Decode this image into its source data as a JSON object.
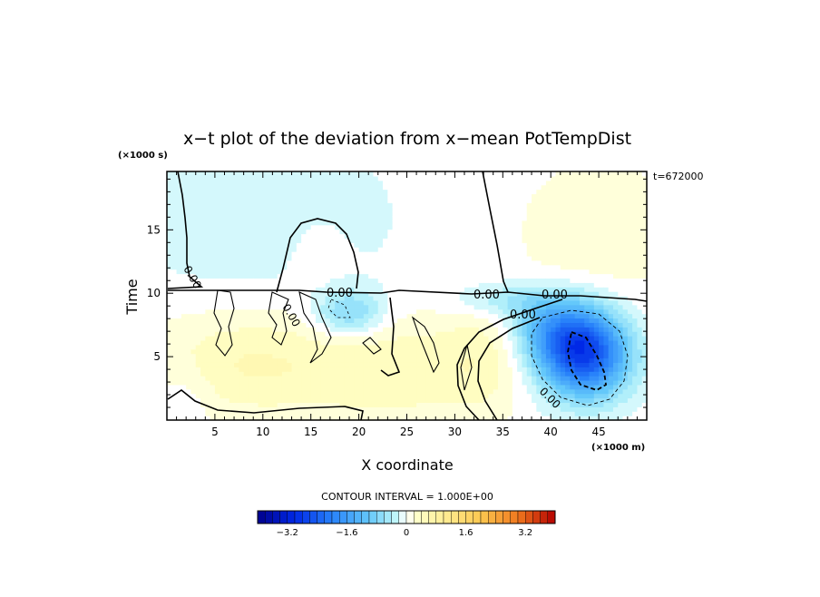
{
  "chart_data": {
    "type": "heatmap",
    "title": "x−t plot of the deviation from x−mean PotTempDist",
    "xlabel": "X coordinate",
    "ylabel": "Time",
    "x_unit": "(×1000 m)",
    "y_unit": "(×1000 s)",
    "time_stamp": "t=672000",
    "xlim": [
      0,
      50
    ],
    "ylim": [
      0,
      19.6
    ],
    "x_ticks": [
      5,
      10,
      15,
      20,
      25,
      30,
      35,
      40,
      45
    ],
    "y_ticks": [
      5,
      10,
      15
    ],
    "contour_interval_label": "CONTOUR INTERVAL = 1.000E+00",
    "contour_labels": [
      "0.00",
      "0.00",
      "0.00",
      "0.00",
      "0.00",
      "0.00",
      "0.00"
    ],
    "colorbar": {
      "range": [
        -4,
        4
      ],
      "step": 0.2,
      "tick_values": [
        -3.2,
        -1.6,
        0,
        1.6,
        3.2
      ],
      "tick_labels": [
        "−3.2",
        "−1.6",
        "0",
        "1.6",
        "3.2"
      ]
    },
    "anomalies": [
      {
        "x": 43.5,
        "t": 5.2,
        "value": -2.6,
        "sx": 3.2,
        "st": 2.3
      },
      {
        "x": 40.5,
        "t": 7.2,
        "value": -1.0,
        "sx": 3.0,
        "st": 1.8
      },
      {
        "x": 19.0,
        "t": 8.5,
        "value": -0.8,
        "sx": 2.5,
        "st": 1.3
      },
      {
        "x": 36.0,
        "t": 9.5,
        "value": -0.5,
        "sx": 4.0,
        "st": 1.0
      },
      {
        "x": 8.0,
        "t": 4.5,
        "value": 0.5,
        "sx": 7.0,
        "st": 3.0
      },
      {
        "x": 24.0,
        "t": 4.0,
        "value": 0.45,
        "sx": 7.0,
        "st": 3.0
      },
      {
        "x": 33.0,
        "t": 5.0,
        "value": 0.3,
        "sx": 3.0,
        "st": 3.0
      },
      {
        "x": 45.0,
        "t": 15.0,
        "value": 0.25,
        "sx": 6.0,
        "st": 4.0
      },
      {
        "x": 15.5,
        "t": 13.5,
        "value": 0.15,
        "sx": 2.5,
        "st": 2.5
      },
      {
        "x": 10.0,
        "t": 16.0,
        "value": -0.25,
        "sx": 10.0,
        "st": 5.0
      },
      {
        "x": 2.0,
        "t": 2.0,
        "value": -0.2,
        "sx": 2.0,
        "st": 2.0
      }
    ]
  }
}
